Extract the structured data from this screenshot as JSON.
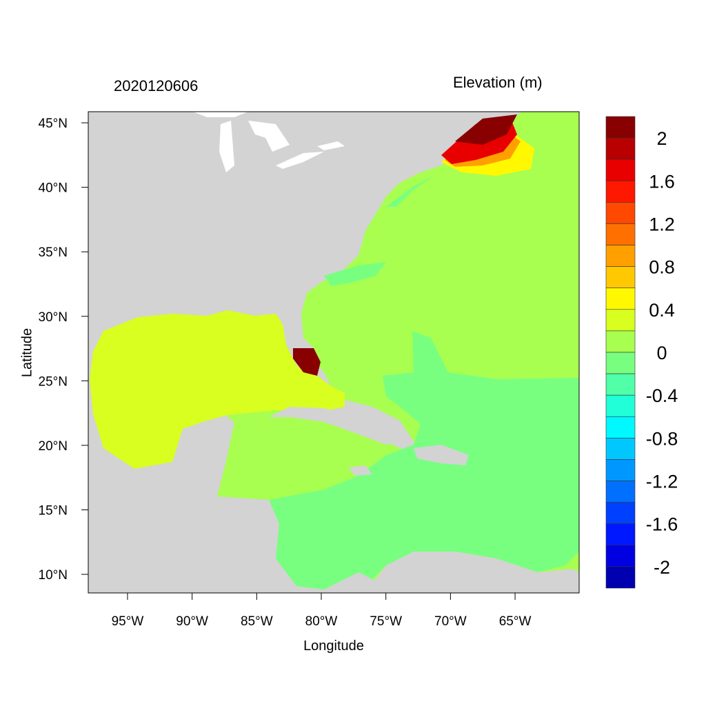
{
  "title_left": "2020120606",
  "title_right": "Elevation (m)",
  "x_axis": {
    "label": "Longitude",
    "range_deg": [
      -98.04,
      -60.04
    ],
    "ticks": [
      {
        "value": -95,
        "label": "95°W"
      },
      {
        "value": -90,
        "label": "90°W"
      },
      {
        "value": -85,
        "label": "85°W"
      },
      {
        "value": -80,
        "label": "80°W"
      },
      {
        "value": -75,
        "label": "75°W"
      },
      {
        "value": -70,
        "label": "70°W"
      },
      {
        "value": -65,
        "label": "65°W"
      }
    ]
  },
  "y_axis": {
    "label": "Latitude",
    "range_deg": [
      8.56,
      45.86
    ],
    "ticks": [
      {
        "value": 45,
        "label": "45°N"
      },
      {
        "value": 40,
        "label": "40°N"
      },
      {
        "value": 35,
        "label": "35°N"
      },
      {
        "value": 30,
        "label": "30°N"
      },
      {
        "value": 25,
        "label": "25°N"
      },
      {
        "value": 20,
        "label": "20°N"
      },
      {
        "value": 15,
        "label": "15°N"
      },
      {
        "value": 10,
        "label": "10°N"
      }
    ]
  },
  "colorbar": {
    "colors": [
      "#880000",
      "#B80000",
      "#E80000",
      "#FF1800",
      "#FF4800",
      "#FF7000",
      "#FFA000",
      "#FFC800",
      "#FFF800",
      "#D8FF20",
      "#A8FF50",
      "#78FF80",
      "#50FFA8",
      "#20FFD8",
      "#00F8FF",
      "#00C8FF",
      "#0098FF",
      "#0070FF",
      "#0040FF",
      "#0018FF",
      "#0000E0",
      "#0000B0"
    ],
    "labels": [
      "2",
      "1.6",
      "1.2",
      "0.8",
      "0.4",
      "0",
      "-0.4",
      "-0.8",
      "-1.2",
      "-1.6",
      "-2"
    ],
    "boundary_step": 0.2
  },
  "colors": {
    "land": "#D3D3D3",
    "lakes": "#FFFFFF"
  }
}
